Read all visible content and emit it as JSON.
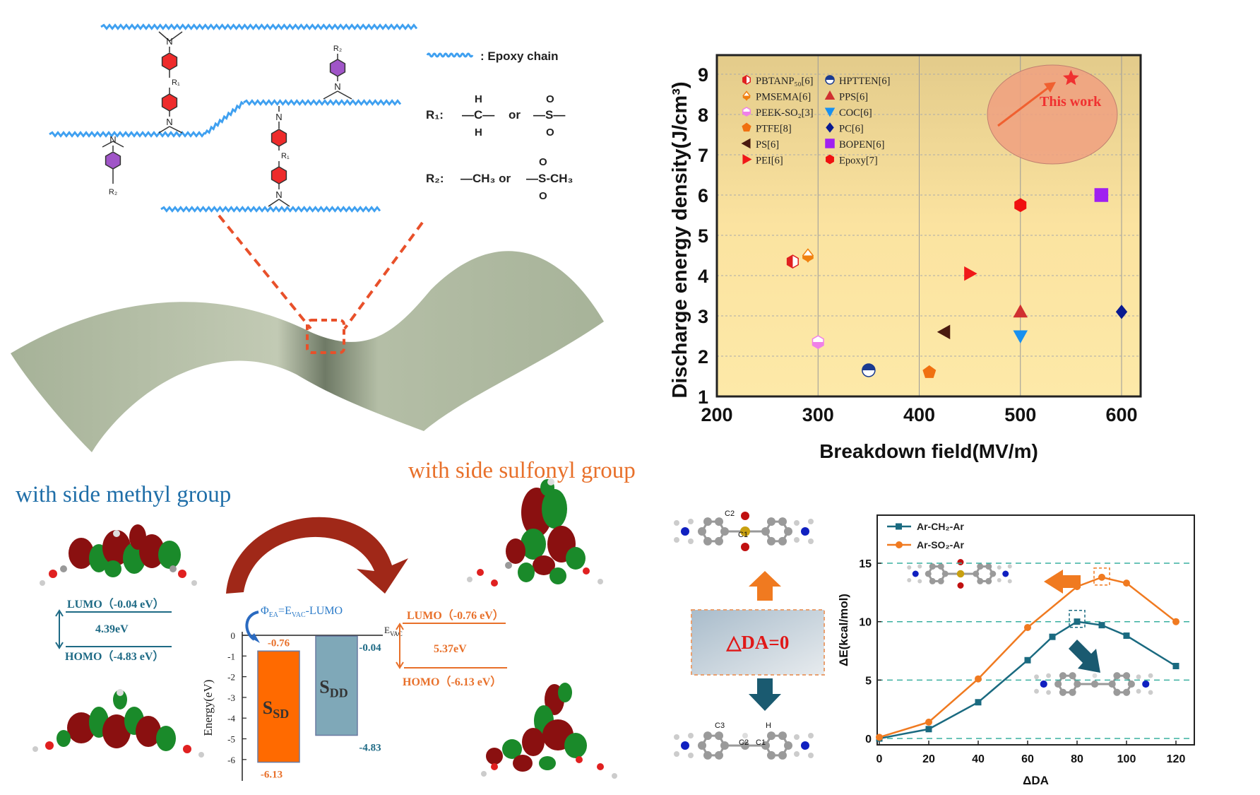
{
  "structure": {
    "legend_epoxy": ": Epoxy chain",
    "r1_label": "R₁:",
    "r1_option_a": "—C—",
    "r1_h": "H",
    "r1_or": "or",
    "r1_option_b": "—S—",
    "o": "O",
    "r2_label": "R₂:",
    "r2_option_a": "—CH₃ or",
    "r2_option_b": "—S-CH₃",
    "n": "N",
    "sub_r1": "R₁",
    "sub_r2": "R₂",
    "colors": {
      "chain": "#3fa0f0",
      "ring_red": "#ee2b2b",
      "ring_purple": "#a055c8",
      "surface": "#a9b59b",
      "dash": "#e8502a"
    }
  },
  "methyl": {
    "title": "with side methyl group",
    "lumo": "LUMO（-0.04 eV）",
    "gap": "4.39eV",
    "homo": "HOMO（-4.83 eV）",
    "color": "#1f6ea8"
  },
  "sulfonyl": {
    "title": "with side sulfonyl group",
    "lumo": "LUMO（-0.76 eV）",
    "gap": "5.37eV",
    "homo": "HOMO（-6.13 eV）",
    "color": "#e8702a"
  },
  "energy_diagram": {
    "formula": {
      "phi": "Φ",
      "phi_sub": "EA",
      "eq": "=E",
      "evac_sub": "VAC",
      "rest": "-LUMO"
    },
    "evac": {
      "main": "E",
      "sub": "VAC"
    },
    "ylabel": "Energy(eV)",
    "ticks": [
      "0",
      "-1",
      "-2",
      "-3",
      "-4",
      "-5",
      "-6"
    ],
    "bars": [
      {
        "main": "S",
        "sub": "SD",
        "top": -0.76,
        "bottom": -6.13,
        "top_label": "-0.76",
        "bottom_label": "-6.13",
        "color": "#ff6a00",
        "label_color": "#e8702a"
      },
      {
        "main": "S",
        "sub": "DD",
        "top": -0.04,
        "bottom": -4.83,
        "top_label": "-0.04",
        "bottom_label": "-4.83",
        "color": "#7fa8b8",
        "label_color": "#1e6a85"
      }
    ]
  },
  "delta_da": {
    "label": "△DA=0",
    "atom_labels": [
      "C2",
      "C1",
      "C3",
      "C2",
      "C1",
      "H"
    ]
  },
  "chart_data": [
    {
      "type": "scatter",
      "xlabel": "Breakdown field(MV/m)",
      "ylabel": "Discharge energy density(J/cm³)",
      "xlim": [
        200,
        620
      ],
      "ylim": [
        1,
        9.5
      ],
      "xticks": [
        "200",
        "300",
        "400",
        "500",
        "600"
      ],
      "yticks": [
        "1",
        "2",
        "3",
        "4",
        "5",
        "6",
        "7",
        "8",
        "9"
      ],
      "grid": true,
      "legend_placement": "top-left",
      "background": [
        "#e6cf8e",
        "#fde9a8"
      ],
      "series": [
        {
          "name": "PBTANP₅₀[6]",
          "x": 275,
          "y": 4.35,
          "marker": "half-hexagon",
          "color": "#e02020"
        },
        {
          "name": "PMSEMA[6]",
          "x": 290,
          "y": 4.5,
          "marker": "half-diamond",
          "color": "#f08010"
        },
        {
          "name": "PEEK-SO₂[3]",
          "x": 300,
          "y": 2.35,
          "marker": "half-hexagon",
          "color": "#f080e8"
        },
        {
          "name": "PTFE[8]",
          "x": 410,
          "y": 1.6,
          "marker": "pentagon",
          "color": "#f07010"
        },
        {
          "name": "PS[6]",
          "x": 425,
          "y": 2.6,
          "marker": "triangle-left",
          "color": "#4a1a10"
        },
        {
          "name": "PEI[6]",
          "x": 450,
          "y": 4.05,
          "marker": "triangle-right",
          "color": "#f01818"
        },
        {
          "name": "HPTTEN[6]",
          "x": 350,
          "y": 1.65,
          "marker": "half-circle",
          "color": "#1a3a90"
        },
        {
          "name": "PPS[6]",
          "x": 500,
          "y": 3.1,
          "marker": "triangle-up",
          "color": "#d03030"
        },
        {
          "name": "COC[6]",
          "x": 500,
          "y": 2.5,
          "marker": "triangle-down",
          "color": "#1890f0"
        },
        {
          "name": "PC[6]",
          "x": 600,
          "y": 3.1,
          "marker": "diamond",
          "color": "#0a1a90"
        },
        {
          "name": "BOPEN[6]",
          "x": 580,
          "y": 6.0,
          "marker": "square",
          "color": "#a020f0"
        },
        {
          "name": "Epoxy[7]",
          "x": 500,
          "y": 5.75,
          "marker": "hexagon",
          "color": "#f01010"
        }
      ],
      "highlight": {
        "label": "This work",
        "x": 550,
        "y": 8.9,
        "marker": "star",
        "color": "#f03030",
        "circle_color": "#f0a080"
      }
    },
    {
      "type": "line",
      "xlabel": "ΔDA",
      "ylabel": "ΔE(kcal/mol)",
      "xlim": [
        0,
        128
      ],
      "ylim": [
        -0.5,
        19.2
      ],
      "xticks": [
        "0",
        "20",
        "40",
        "60",
        "80",
        "100",
        "120"
      ],
      "yticks": [
        "0",
        "5",
        "10",
        "15"
      ],
      "grid": "dashed horizontal at y ticks",
      "legend_placement": "top-left",
      "series": [
        {
          "name": "Ar-CH₂-Ar",
          "color": "#1a6a80",
          "marker": "square",
          "x": [
            0,
            20,
            40,
            60,
            70,
            80,
            90,
            100,
            120
          ],
          "y": [
            0,
            0.8,
            3.1,
            6.7,
            8.7,
            10.0,
            9.7,
            8.8,
            6.2
          ]
        },
        {
          "name": "Ar-SO₂-Ar",
          "color": "#f07a20",
          "marker": "circle",
          "x": [
            0,
            20,
            40,
            60,
            80,
            90,
            100,
            120
          ],
          "y": [
            0.1,
            1.4,
            5.1,
            9.5,
            13.0,
            13.8,
            13.3,
            10.0
          ]
        }
      ]
    }
  ]
}
